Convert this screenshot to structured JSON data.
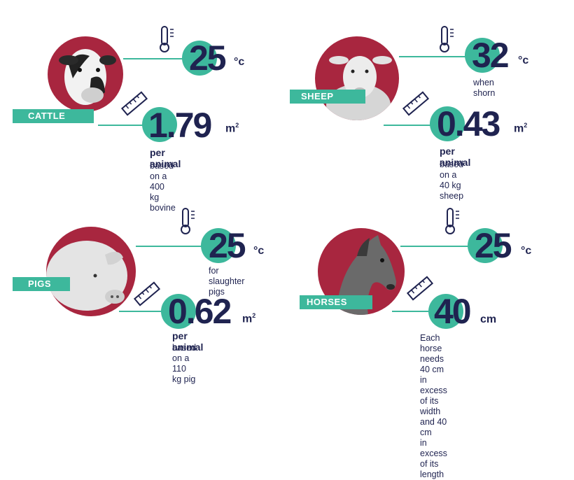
{
  "cattle": {
    "tag": "CATTLE",
    "temp_value": "25",
    "temp_unit": "°c",
    "space_value": "1.79",
    "space_unit": "m",
    "space_unit_exp": "2",
    "per_animal": "per animal",
    "basis": "based on a 400 kg bovine"
  },
  "sheep": {
    "tag": "SHEEP",
    "temp_value": "32",
    "temp_unit": "°c",
    "temp_note": "when shorn",
    "space_value": "0.43",
    "space_unit": "m",
    "space_unit_exp": "2",
    "per_animal": "per animal",
    "basis": "based on a 40 kg sheep"
  },
  "pigs": {
    "tag": "PIGS",
    "temp_value": "25",
    "temp_unit": "°c",
    "temp_note": "for slaughter pigs",
    "space_value": "0.62",
    "space_unit": "m",
    "space_unit_exp": "2",
    "per_animal": "per animal",
    "basis": "based on a 110 kg pig"
  },
  "horses": {
    "tag": "HORSES",
    "temp_value": "25",
    "temp_unit": "°c",
    "space_value": "40",
    "space_unit": "cm",
    "note_line1": "Each horse needs 40 cm in",
    "note_line2": "excess of its width and 40 cm",
    "note_line3": "in excess of its length"
  },
  "colors": {
    "accent": "#3db89c",
    "circle": "#a8263f",
    "text": "#1f2350"
  }
}
